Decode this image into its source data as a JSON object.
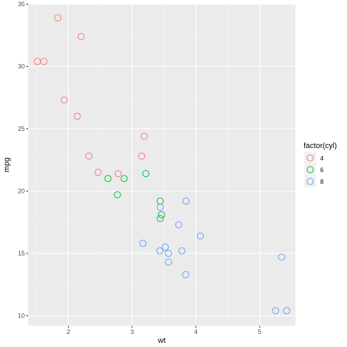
{
  "chart_data": {
    "type": "scatter",
    "xlabel": "wt",
    "ylabel": "mpg",
    "xlim": [
      1.37,
      5.56
    ],
    "ylim": [
      9.2,
      35.0
    ],
    "x_ticks": [
      2,
      3,
      4,
      5
    ],
    "y_ticks": [
      10,
      15,
      20,
      25,
      30,
      35
    ],
    "grid": true,
    "legend": {
      "title": "factor(cyl)",
      "placement": "right"
    },
    "series": [
      {
        "name": "4",
        "color": "#F8766D",
        "points": [
          {
            "x": 1.835,
            "y": 33.9
          },
          {
            "x": 2.2,
            "y": 32.4
          },
          {
            "x": 1.513,
            "y": 30.4
          },
          {
            "x": 1.615,
            "y": 30.4
          },
          {
            "x": 1.935,
            "y": 27.3
          },
          {
            "x": 2.14,
            "y": 26.0
          },
          {
            "x": 3.19,
            "y": 24.4
          },
          {
            "x": 3.15,
            "y": 22.8
          },
          {
            "x": 2.32,
            "y": 22.8
          },
          {
            "x": 2.465,
            "y": 21.5
          },
          {
            "x": 2.78,
            "y": 21.4
          }
        ]
      },
      {
        "name": "6",
        "color": "#00BA38",
        "points": [
          {
            "x": 3.215,
            "y": 21.4
          },
          {
            "x": 2.62,
            "y": 21.0
          },
          {
            "x": 2.875,
            "y": 21.0
          },
          {
            "x": 2.77,
            "y": 19.7
          },
          {
            "x": 3.44,
            "y": 19.2
          },
          {
            "x": 3.46,
            "y": 18.1
          },
          {
            "x": 3.44,
            "y": 17.8
          }
        ]
      },
      {
        "name": "8",
        "color": "#619CFF",
        "points": [
          {
            "x": 3.845,
            "y": 19.2
          },
          {
            "x": 3.44,
            "y": 18.7
          },
          {
            "x": 3.73,
            "y": 17.3
          },
          {
            "x": 4.07,
            "y": 16.4
          },
          {
            "x": 3.17,
            "y": 15.8
          },
          {
            "x": 3.52,
            "y": 15.5
          },
          {
            "x": 3.435,
            "y": 15.2
          },
          {
            "x": 3.78,
            "y": 15.2
          },
          {
            "x": 3.57,
            "y": 15.0
          },
          {
            "x": 5.345,
            "y": 14.7
          },
          {
            "x": 3.57,
            "y": 14.3
          },
          {
            "x": 3.84,
            "y": 13.3
          },
          {
            "x": 5.25,
            "y": 10.4
          },
          {
            "x": 5.424,
            "y": 10.4
          }
        ]
      }
    ]
  }
}
